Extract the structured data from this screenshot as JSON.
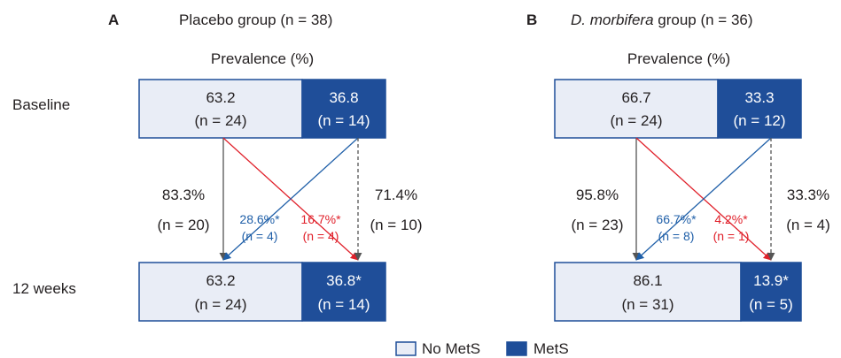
{
  "panels": [
    {
      "letter": "A",
      "title": "Placebo group (n = 38)",
      "title_italic": "",
      "prevalence_label": "Prevalence (%)",
      "baseline": {
        "nomets": {
          "value": "63.2",
          "n": "(n = 24)"
        },
        "mets": {
          "value": "36.8",
          "n": "(n = 14)"
        }
      },
      "week12": {
        "nomets": {
          "value": "63.2",
          "n": "(n = 24)"
        },
        "mets": {
          "value": "36.8*",
          "n": "(n = 14)"
        }
      },
      "transitions": {
        "stay_nomets": {
          "pct": "83.3%",
          "n": "(n = 20)"
        },
        "mets_to_nomets": {
          "pct": "28.6%*",
          "n": "(n = 4)"
        },
        "nomets_to_mets": {
          "pct": "16.7%*",
          "n": "(n = 4)"
        },
        "stay_mets": {
          "pct": "71.4%",
          "n": "(n = 10)"
        }
      }
    },
    {
      "letter": "B",
      "title": " group (n = 36)",
      "title_italic": "D. morbifera",
      "prevalence_label": "Prevalence (%)",
      "baseline": {
        "nomets": {
          "value": "66.7",
          "n": "(n = 24)"
        },
        "mets": {
          "value": "33.3",
          "n": "(n = 12)"
        }
      },
      "week12": {
        "nomets": {
          "value": "86.1",
          "n": "(n = 31)"
        },
        "mets": {
          "value": "13.9*",
          "n": "(n = 5)"
        }
      },
      "transitions": {
        "stay_nomets": {
          "pct": "95.8%",
          "n": "(n = 23)"
        },
        "mets_to_nomets": {
          "pct": "66.7%*",
          "n": "(n = 8)"
        },
        "nomets_to_mets": {
          "pct": "4.2%*",
          "n": "(n = 1)"
        },
        "stay_mets": {
          "pct": "33.3%",
          "n": "(n = 4)"
        }
      }
    }
  ],
  "row_labels": {
    "baseline": "Baseline",
    "week12": "12 weeks"
  },
  "legend": {
    "nomets": "No MetS",
    "mets": "MetS"
  },
  "colors": {
    "mets": "#1f4e99",
    "nomets": "#e9edf6",
    "arrow_gray": "#555555",
    "arrow_blue": "#1f5fa8",
    "arrow_red": "#e0202a"
  }
}
